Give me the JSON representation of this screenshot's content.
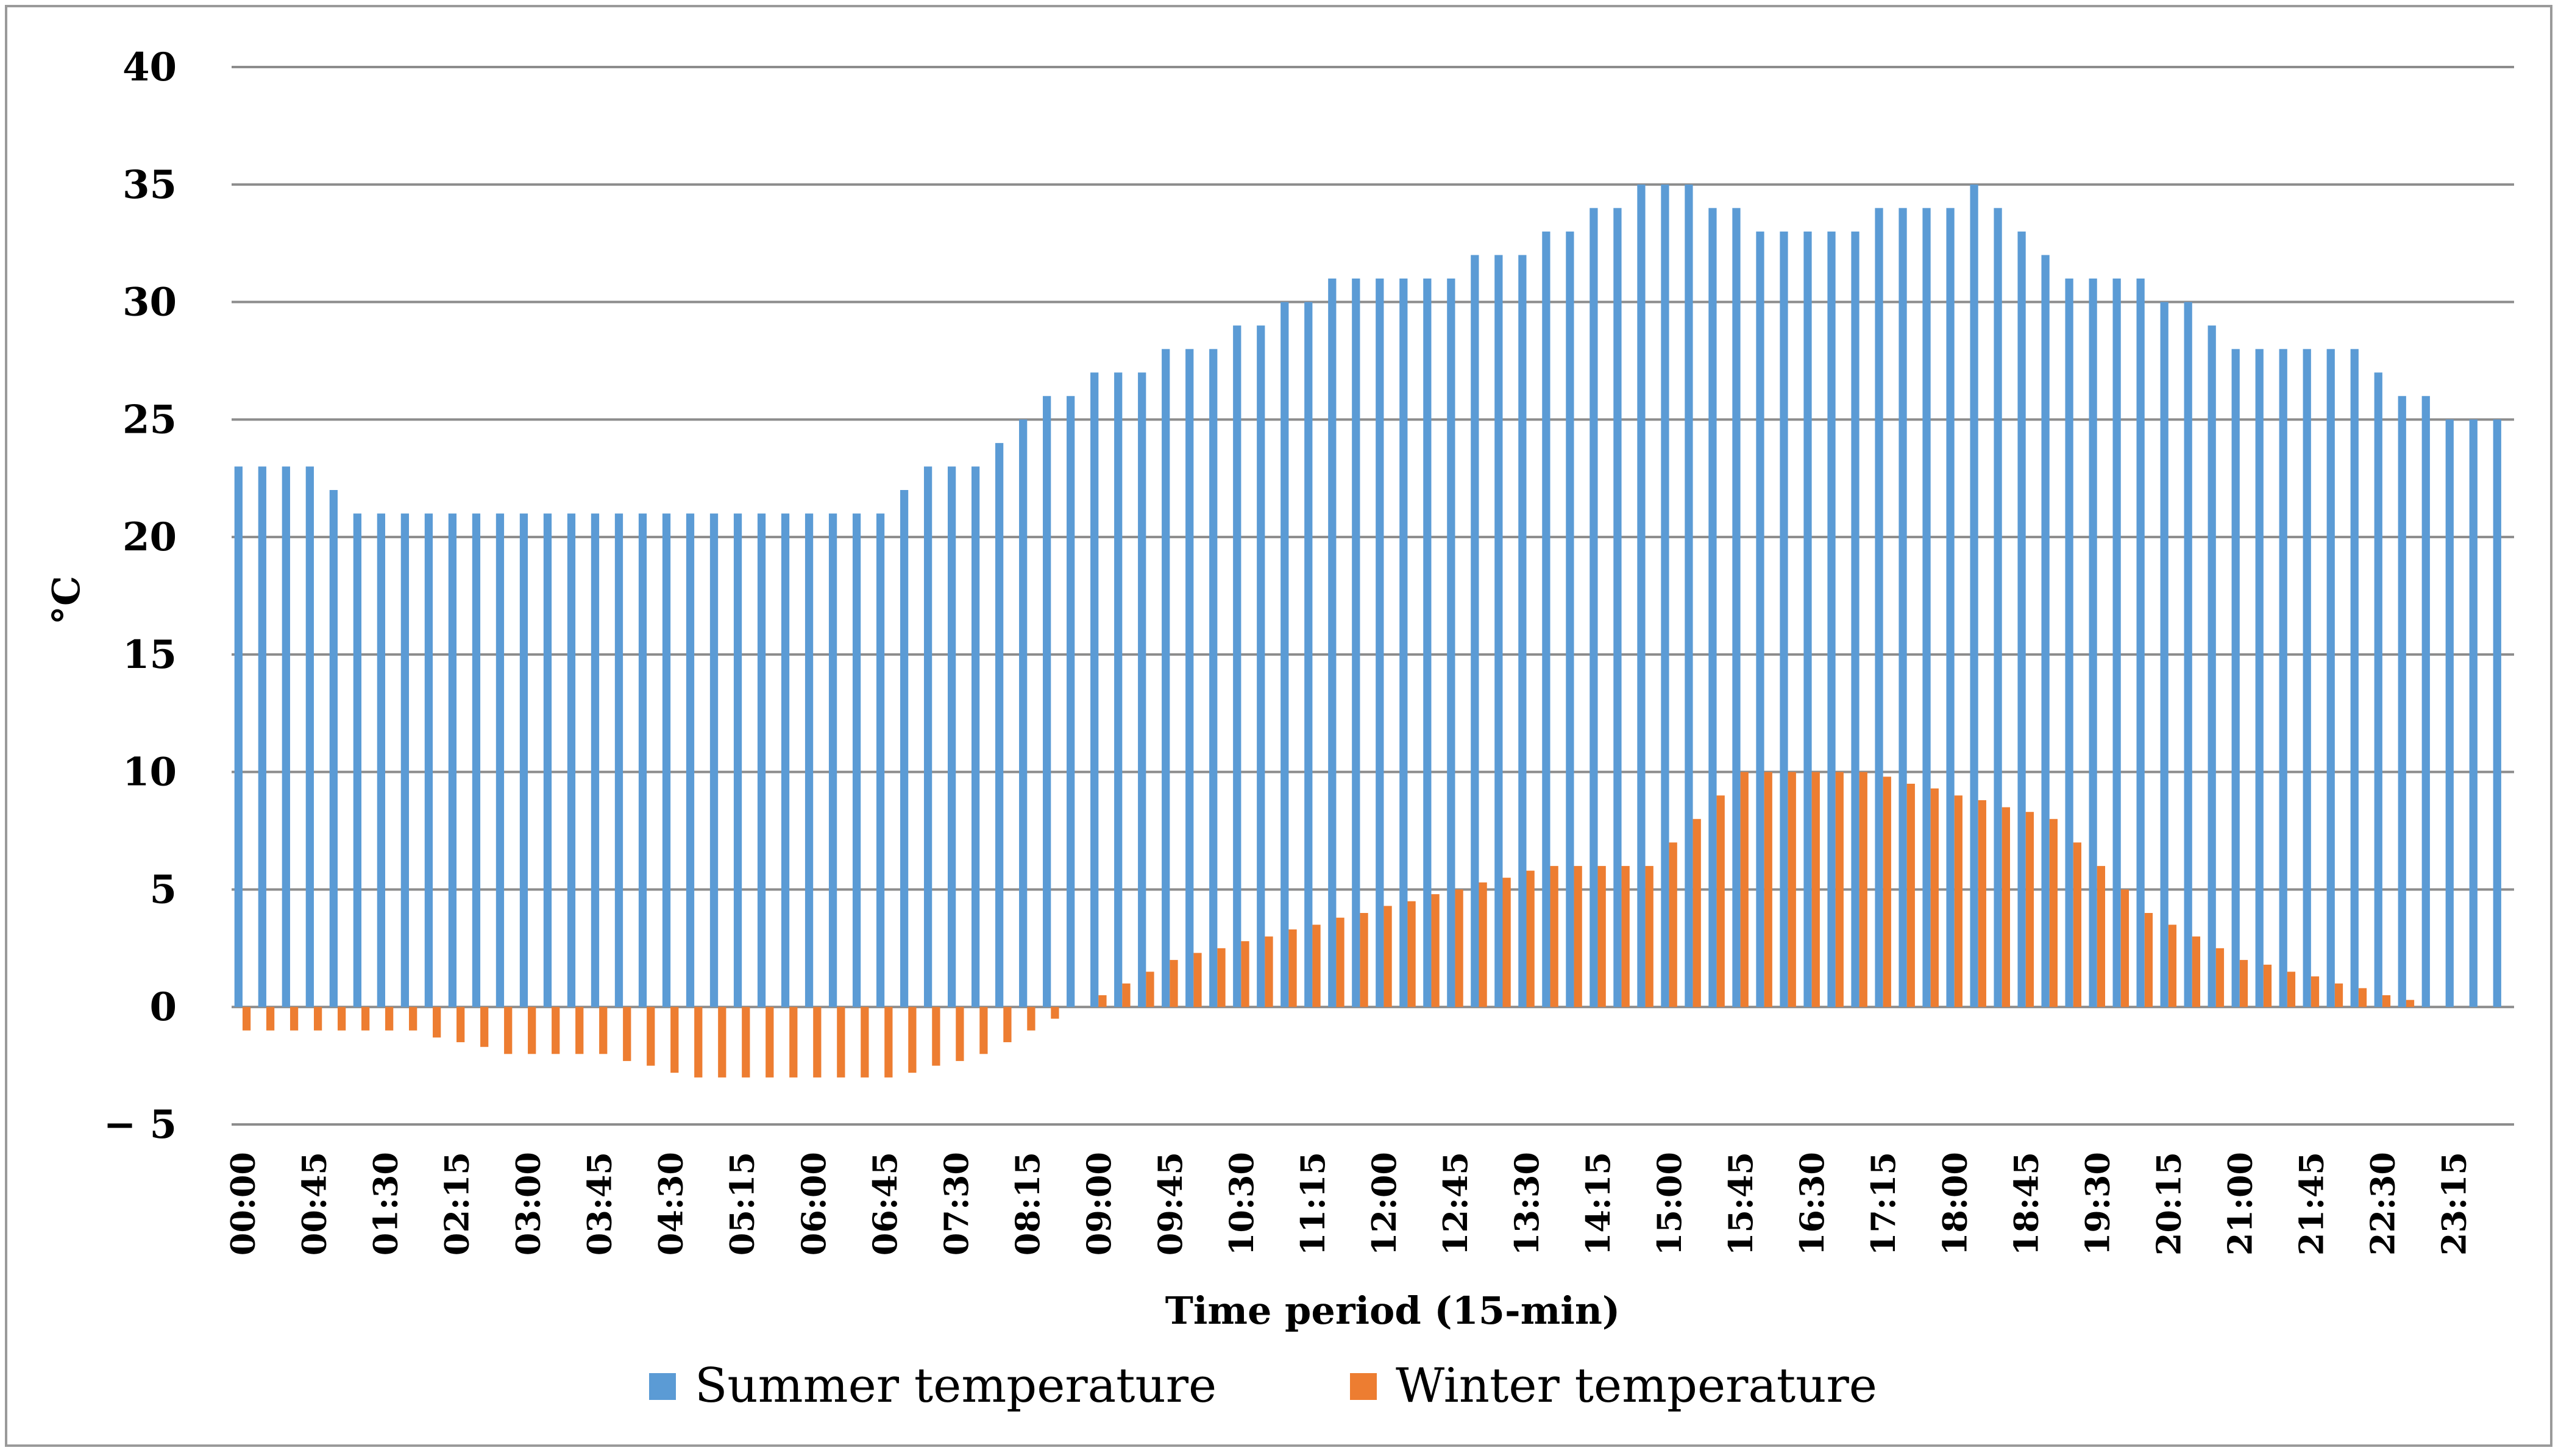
{
  "chart_data": {
    "type": "bar",
    "title": "",
    "xlabel": "Time period (15-min)",
    "ylabel": "°C",
    "ylim": [
      -5,
      40
    ],
    "yticks": [
      40,
      35,
      30,
      25,
      20,
      15,
      10,
      5,
      0,
      -5
    ],
    "ytick_labels": [
      "40",
      "35",
      "30",
      "25",
      "20",
      "15",
      "10",
      "5",
      "0",
      "− 5"
    ],
    "grid": true,
    "legend_position": "bottom",
    "categories": [
      "00:00",
      "00:15",
      "00:30",
      "00:45",
      "01:00",
      "01:15",
      "01:30",
      "01:45",
      "02:00",
      "02:15",
      "02:30",
      "02:45",
      "03:00",
      "03:15",
      "03:30",
      "03:45",
      "04:00",
      "04:15",
      "04:30",
      "04:45",
      "05:00",
      "05:15",
      "05:30",
      "05:45",
      "06:00",
      "06:15",
      "06:30",
      "06:45",
      "07:00",
      "07:15",
      "07:30",
      "07:45",
      "08:00",
      "08:15",
      "08:30",
      "08:45",
      "09:00",
      "09:15",
      "09:30",
      "09:45",
      "10:00",
      "10:15",
      "10:30",
      "10:45",
      "11:00",
      "11:15",
      "11:30",
      "11:45",
      "12:00",
      "12:15",
      "12:30",
      "12:45",
      "13:00",
      "13:15",
      "13:30",
      "13:45",
      "14:00",
      "14:15",
      "14:30",
      "14:45",
      "15:00",
      "15:15",
      "15:30",
      "15:45",
      "16:00",
      "16:15",
      "16:30",
      "16:45",
      "17:00",
      "17:15",
      "17:30",
      "17:45",
      "18:00",
      "18:15",
      "18:30",
      "18:45",
      "19:00",
      "19:15",
      "19:30",
      "19:45",
      "20:00",
      "20:15",
      "20:30",
      "20:45",
      "21:00",
      "21:15",
      "21:30",
      "21:45",
      "22:00",
      "22:15",
      "22:30",
      "22:45",
      "23:00",
      "23:15",
      "23:30",
      "23:45"
    ],
    "tick_labels": [
      "00:00",
      "00:45",
      "01:30",
      "02:15",
      "03:00",
      "03:45",
      "04:30",
      "05:15",
      "06:00",
      "06:45",
      "07:30",
      "08:15",
      "09:00",
      "09:45",
      "10:30",
      "11:15",
      "12:00",
      "12:45",
      "13:30",
      "14:15",
      "15:00",
      "15:45",
      "16:30",
      "17:15",
      "18:00",
      "18:45",
      "19:30",
      "20:15",
      "21:00",
      "21:45",
      "22:30",
      "23:15"
    ],
    "series": [
      {
        "name": "Summer temperature",
        "color": "#5b9bd5",
        "values": [
          23,
          23,
          23,
          23,
          22,
          21,
          21,
          21,
          21,
          21,
          21,
          21,
          21,
          21,
          21,
          21,
          21,
          21,
          21,
          21,
          21,
          21,
          21,
          21,
          21,
          21,
          21,
          21,
          22,
          23,
          23,
          23,
          24,
          25,
          26,
          26,
          27,
          27,
          27,
          28,
          28,
          28,
          29,
          29,
          30,
          30,
          31,
          31,
          31,
          31,
          31,
          31,
          32,
          32,
          32,
          33,
          33,
          34,
          34,
          35,
          35,
          35,
          34,
          34,
          33,
          33,
          33,
          33,
          33,
          34,
          34,
          34,
          34,
          35,
          34,
          33,
          32,
          31,
          31,
          31,
          31,
          30,
          30,
          29,
          28,
          28,
          28,
          28,
          28,
          28,
          27,
          26,
          26,
          25,
          25,
          25
        ]
      },
      {
        "name": "Winter temperature",
        "color": "#ed7d31",
        "values": [
          -1,
          -1,
          -1,
          -1,
          -1,
          -1,
          -1,
          -1,
          -1.3,
          -1.5,
          -1.7,
          -2,
          -2,
          -2,
          -2,
          -2,
          -2.3,
          -2.5,
          -2.8,
          -3,
          -3,
          -3,
          -3,
          -3,
          -3,
          -3,
          -3,
          -3,
          -2.8,
          -2.5,
          -2.3,
          -2,
          -1.5,
          -1,
          -0.5,
          0,
          0.5,
          1,
          1.5,
          2,
          2.3,
          2.5,
          2.8,
          3,
          3.3,
          3.5,
          3.8,
          4,
          4.3,
          4.5,
          4.8,
          5,
          5.3,
          5.5,
          5.8,
          6,
          6,
          6,
          6,
          6,
          7,
          8,
          9,
          10,
          10,
          10,
          10,
          10,
          10,
          9.8,
          9.5,
          9.3,
          9,
          8.8,
          8.5,
          8.3,
          8,
          7,
          6,
          5,
          4,
          3.5,
          3,
          2.5,
          2,
          1.8,
          1.5,
          1.3,
          1,
          0.8,
          0.5,
          0.3,
          0,
          0,
          0,
          0
        ]
      }
    ]
  }
}
